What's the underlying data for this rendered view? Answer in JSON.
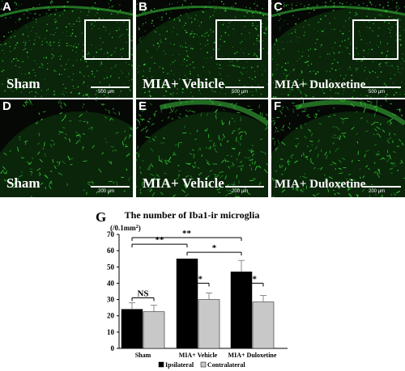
{
  "panels": {
    "a": {
      "letter": "A",
      "label": "Sham",
      "scale": "500 µm"
    },
    "b": {
      "letter": "B",
      "label": "MIA+ Vehicle",
      "scale": "500 µm"
    },
    "c": {
      "letter": "C",
      "label": "MIA+ Duloxetine",
      "scale": "500 µm"
    },
    "d": {
      "letter": "D",
      "label": "Sham",
      "scale": "200 µm"
    },
    "e": {
      "letter": "E",
      "label": "MIA+ Vehicle",
      "scale": "200 µm"
    },
    "f": {
      "letter": "F",
      "label": "MIA+ Duloxetine",
      "scale": "200 µm"
    }
  },
  "colors": {
    "fluorescence": "#38d838",
    "ipsilateral": "#000000",
    "contralateral": "#c8c8c8"
  },
  "chart_data": {
    "type": "bar",
    "panel_letter": "G",
    "title": "The number of Iba1-ir microglia",
    "ylabel": "(/0.1mm²)",
    "ylim": [
      0,
      70
    ],
    "yticks": [
      "0",
      "10",
      "20",
      "30",
      "40",
      "50",
      "60",
      "70"
    ],
    "categories": [
      "Sham",
      "MIA+ Vehicle",
      "MIA+ Duloxetine"
    ],
    "series": [
      {
        "name": "Ipsilateral",
        "values": [
          24,
          55,
          47
        ],
        "errors": [
          4,
          0,
          7
        ]
      },
      {
        "name": "Contralateral",
        "values": [
          22.5,
          30,
          28.5
        ],
        "errors": [
          4,
          4,
          4
        ]
      }
    ],
    "significance": [
      {
        "label": "NS",
        "from": "Sham ipsilateral",
        "to": "Sham contralateral",
        "y": 31
      },
      {
        "label": "**",
        "from": "MIA+ Vehicle ipsilateral",
        "to": "MIA+ Vehicle contralateral",
        "y": 40
      },
      {
        "label": "**",
        "from": "MIA+ Duloxetine ipsilateral",
        "to": "MIA+ Duloxetine contralateral",
        "y": 40
      },
      {
        "label": "**",
        "from": "Sham ipsilateral",
        "to": "MIA+ Vehicle ipsilateral",
        "y": 64
      },
      {
        "label": "*",
        "from": "MIA+ Vehicle ipsilateral",
        "to": "MIA+ Duloxetine ipsilateral",
        "y": 59
      },
      {
        "label": "**",
        "from": "Sham ipsilateral",
        "to": "MIA+ Duloxetine ipsilateral",
        "y": 68
      }
    ],
    "legend": [
      "Ipsilateral",
      "Contralateral"
    ],
    "legend_position": "bottom"
  }
}
